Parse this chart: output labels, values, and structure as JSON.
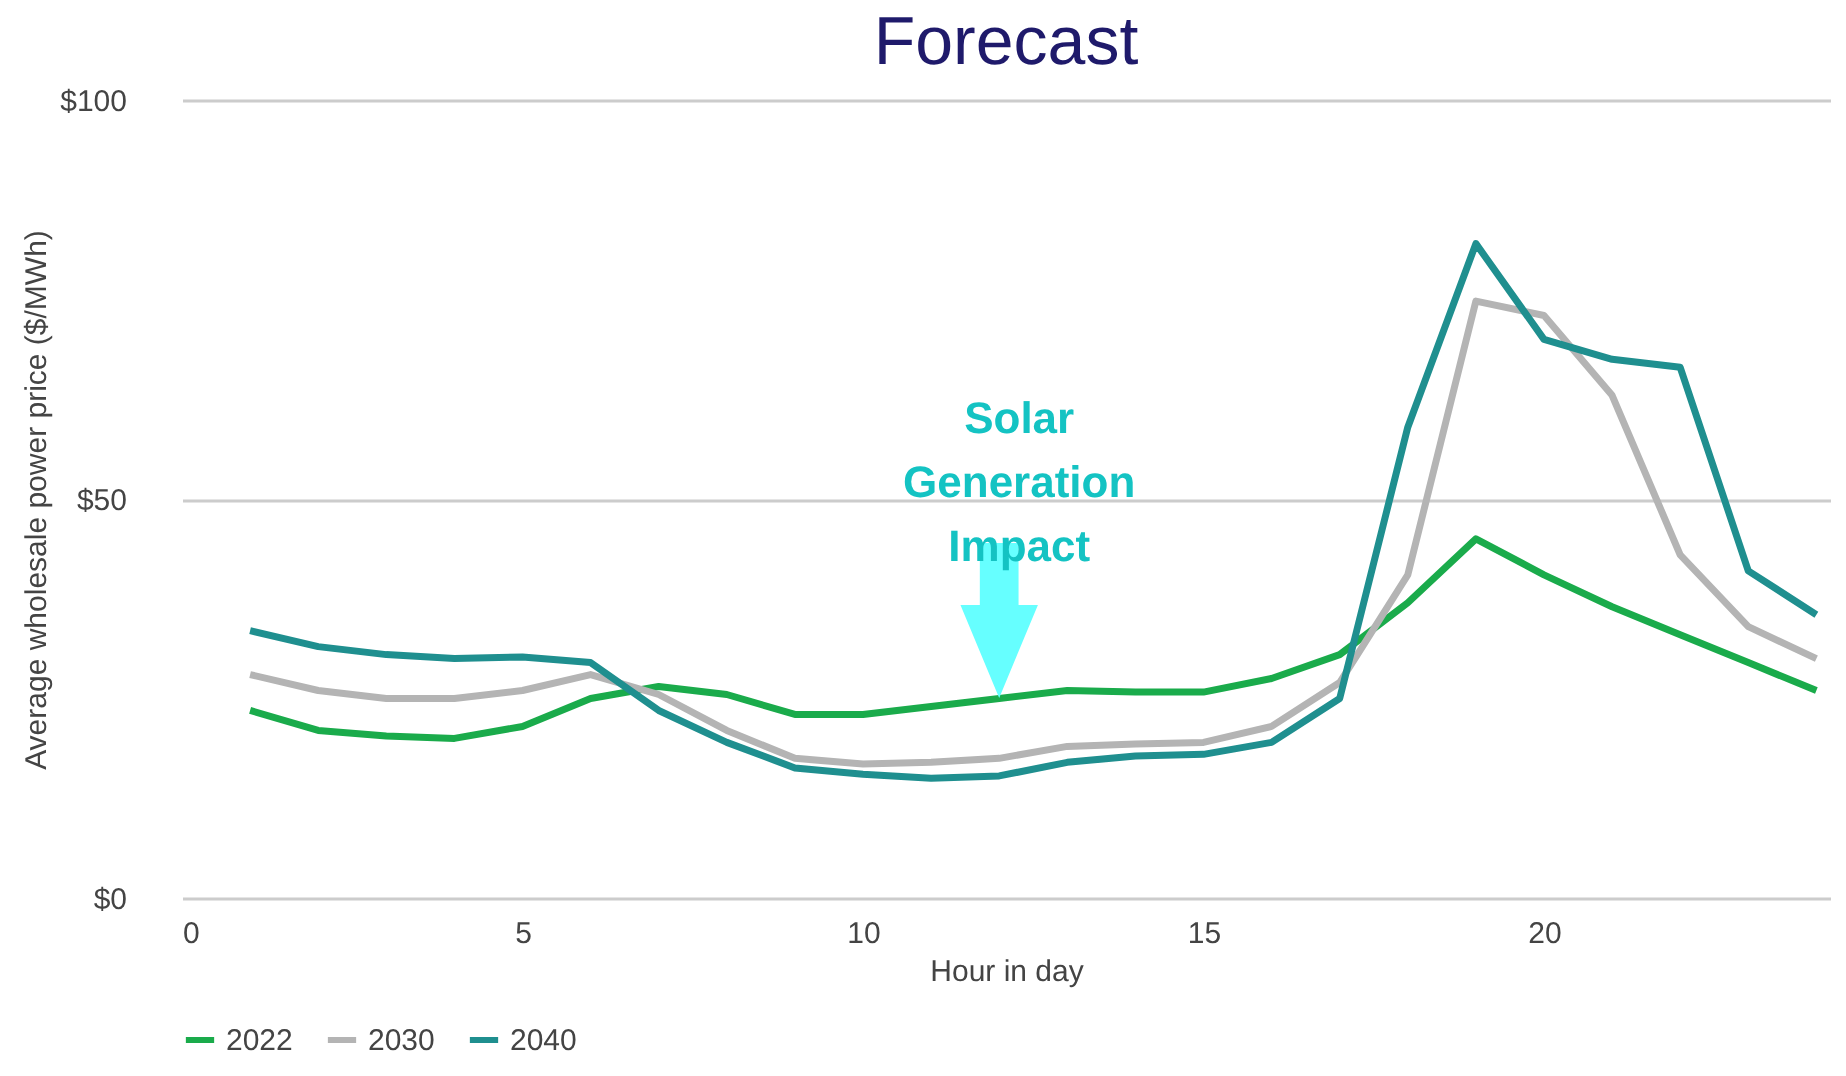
{
  "chart_data": {
    "type": "line",
    "title": "Forecast",
    "xlabel": "Hour in day",
    "ylabel": "Average wholesale power price ($/MWh)",
    "x": [
      1,
      2,
      3,
      4,
      5,
      6,
      7,
      8,
      9,
      10,
      11,
      12,
      13,
      14,
      15,
      16,
      17,
      18,
      19,
      20,
      21,
      22,
      23,
      24
    ],
    "series": [
      {
        "name": "2022",
        "color": "#1aab4b",
        "values": [
          23.5,
          21,
          20.3,
          20,
          21.5,
          25,
          26.5,
          25.5,
          23,
          23,
          24,
          25,
          26,
          25.8,
          25.8,
          27.5,
          30.5,
          37,
          45,
          40.5,
          36.5,
          33,
          29.5,
          26
        ]
      },
      {
        "name": "2030",
        "color": "#b4b4b4",
        "values": [
          28,
          26,
          25,
          25,
          26,
          28,
          25.5,
          21,
          17.5,
          16.8,
          17,
          17.5,
          19,
          19.3,
          19.5,
          21.5,
          27,
          40.5,
          74.8,
          73,
          63,
          43,
          34,
          30
        ]
      },
      {
        "name": "2040",
        "color": "#1f8f8f",
        "values": [
          33.5,
          31.5,
          30.5,
          30,
          30.2,
          29.5,
          23.5,
          19.5,
          16.3,
          15.5,
          15,
          15.3,
          17,
          17.8,
          18,
          19.5,
          25,
          59,
          82,
          70,
          67.5,
          66.5,
          41,
          35.5
        ]
      }
    ],
    "xlim": [
      0,
      24.2
    ],
    "xticks": [
      0,
      5,
      10,
      15,
      20
    ],
    "ylim": [
      0,
      100
    ],
    "yticks": [
      {
        "value": 0,
        "label": "$0"
      },
      {
        "value": 50,
        "label": "$50"
      },
      {
        "value": 100,
        "label": "$100"
      }
    ],
    "grid": "y",
    "legend": "bottom",
    "marker": "none",
    "line_style": "solid",
    "annotations": [
      {
        "text": "Solar Generation Impact",
        "x": 12,
        "y": 25
      }
    ]
  }
}
